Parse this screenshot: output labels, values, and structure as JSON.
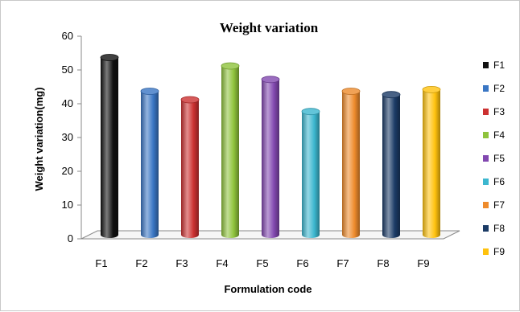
{
  "chart_data": {
    "type": "bar",
    "title": "Weight variation",
    "xlabel": "Formulation code",
    "ylabel": "Weight variation(mg)",
    "categories": [
      "F1",
      "F2",
      "F3",
      "F4",
      "F5",
      "F6",
      "F7",
      "F8",
      "F9"
    ],
    "values": [
      52.5,
      42.5,
      40,
      50,
      46,
      36.5,
      42.5,
      41.5,
      43
    ],
    "ylim": [
      0,
      60
    ],
    "yticks": [
      0,
      10,
      20,
      30,
      40,
      50,
      60
    ],
    "grid": false,
    "legend_position": "right",
    "legend": [
      "F1",
      "F2",
      "F3",
      "F4",
      "F5",
      "F6",
      "F7",
      "F8",
      "F9"
    ],
    "colors": [
      "#111111",
      "#3a76c4",
      "#cc3131",
      "#8fc33c",
      "#8248b0",
      "#3cb7cf",
      "#ee8b2c",
      "#1b3b66",
      "#ffc20e"
    ]
  }
}
